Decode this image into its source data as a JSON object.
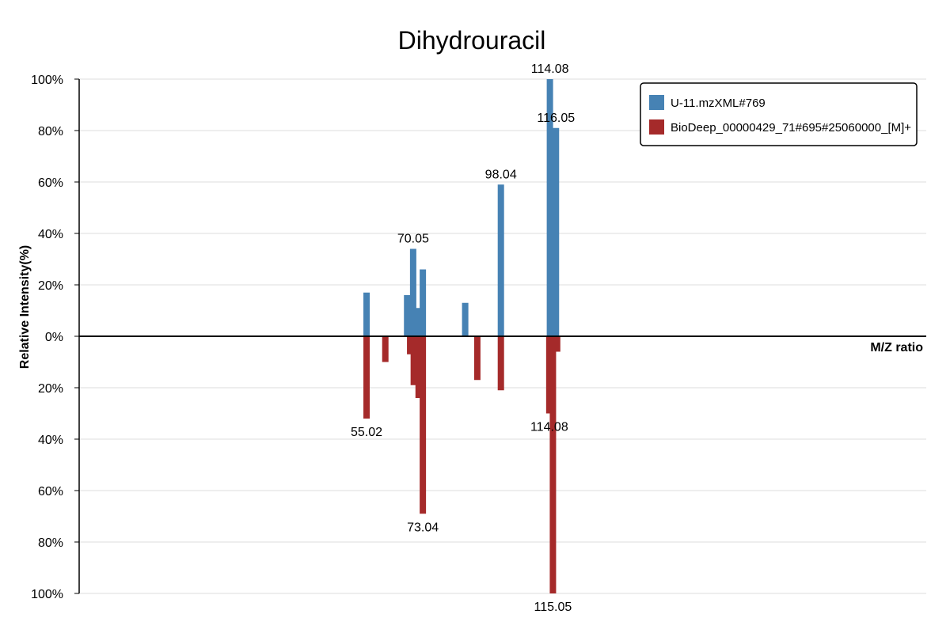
{
  "chart_data": {
    "type": "bar",
    "title": "Dihydrouracil",
    "xlabel": "M/Z ratio",
    "ylabel": "Relative Intensity(%)",
    "y_ticks_upper": [
      "100%",
      "80%",
      "60%",
      "40%",
      "20%",
      "0%"
    ],
    "y_ticks_lower": [
      "20%",
      "40%",
      "60%",
      "80%",
      "100%"
    ],
    "ylim_upper": [
      0,
      100
    ],
    "ylim_lower": [
      0,
      100
    ],
    "xlim": [
      0,
      140
    ],
    "grid": true,
    "legend_position": "top-right",
    "colors": {
      "upper": "#4682b4",
      "lower": "#a52a2a"
    },
    "series": [
      {
        "name": "U-11.mzXML#769",
        "direction": "up",
        "peaks": [
          {
            "mz": 47.5,
            "intensity": 17
          },
          {
            "mz": 54.2,
            "intensity": 16
          },
          {
            "mz": 55.2,
            "intensity": 34,
            "label": "70.05"
          },
          {
            "mz": 56.0,
            "intensity": 11
          },
          {
            "mz": 56.8,
            "intensity": 26
          },
          {
            "mz": 63.8,
            "intensity": 13
          },
          {
            "mz": 69.7,
            "intensity": 59,
            "label": "98.04"
          },
          {
            "mz": 77.8,
            "intensity": 100,
            "label": "114.08"
          },
          {
            "mz": 78.8,
            "intensity": 81,
            "label": "116.05"
          }
        ]
      },
      {
        "name": "BioDeep_00000429_71#695#25060000_[M]+",
        "direction": "down",
        "peaks": [
          {
            "mz": 47.5,
            "intensity": 32,
            "label": "55.02"
          },
          {
            "mz": 50.6,
            "intensity": 10
          },
          {
            "mz": 54.7,
            "intensity": 7
          },
          {
            "mz": 55.3,
            "intensity": 19
          },
          {
            "mz": 56.1,
            "intensity": 24
          },
          {
            "mz": 56.8,
            "intensity": 69,
            "label": "73.04"
          },
          {
            "mz": 65.8,
            "intensity": 17
          },
          {
            "mz": 69.7,
            "intensity": 21
          },
          {
            "mz": 77.7,
            "intensity": 30,
            "label": "114.08"
          },
          {
            "mz": 78.3,
            "intensity": 100,
            "label": "115.05"
          },
          {
            "mz": 79.0,
            "intensity": 6
          }
        ]
      }
    ]
  }
}
